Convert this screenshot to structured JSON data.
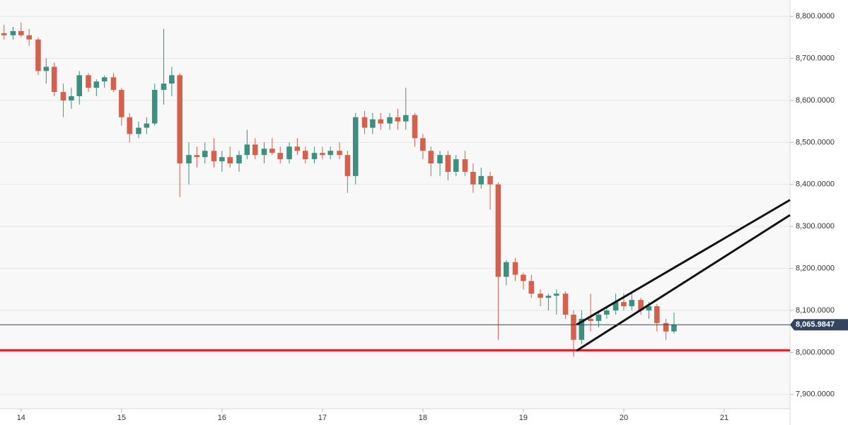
{
  "chart_data": {
    "type": "candlestick",
    "up_color": "#3d8f80",
    "down_color": "#d4604e",
    "xlim": [
      13.79,
      21.655
    ],
    "ylim": [
      7866,
      8839
    ],
    "xticks": [
      14,
      15,
      16,
      17,
      18,
      19,
      20,
      21
    ],
    "yticks": [
      {
        "value": 7900,
        "label": "7,900.0000"
      },
      {
        "value": 8000,
        "label": "8,000.0000"
      },
      {
        "value": 8100,
        "label": "8,100.0000"
      },
      {
        "value": 8200,
        "label": "8,200.0000"
      },
      {
        "value": 8300,
        "label": "8,300.0000"
      },
      {
        "value": 8400,
        "label": "8,400.0000"
      },
      {
        "value": 8500,
        "label": "8,500.0000"
      },
      {
        "value": 8600,
        "label": "8,600.0000"
      },
      {
        "value": 8700,
        "label": "8,700.0000"
      },
      {
        "value": 8800,
        "label": "8,800.0000"
      }
    ],
    "grid": true,
    "current_price": {
      "value": 8065.9847,
      "label": "8,065.9847",
      "color": "#34435f"
    },
    "lines": [
      {
        "color": "#e01b1b",
        "x": [
          13.79,
          21.655
        ],
        "y": [
          8005,
          8005
        ]
      },
      {
        "color": "#111111",
        "x": [
          19.53,
          21.655
        ],
        "y": [
          8066,
          8363
        ]
      },
      {
        "color": "#111111",
        "x": [
          19.53,
          21.655
        ],
        "y": [
          8004,
          8327
        ]
      }
    ],
    "x": [
      13.83,
      13.92,
      14.0,
      14.08,
      14.17,
      14.25,
      14.33,
      14.42,
      14.5,
      14.58,
      14.67,
      14.75,
      14.83,
      14.92,
      15.0,
      15.08,
      15.17,
      15.25,
      15.33,
      15.42,
      15.5,
      15.58,
      15.67,
      15.75,
      15.83,
      15.92,
      16.0,
      16.08,
      16.17,
      16.25,
      16.33,
      16.42,
      16.5,
      16.58,
      16.67,
      16.75,
      16.83,
      16.92,
      17.0,
      17.08,
      17.17,
      17.25,
      17.33,
      17.42,
      17.5,
      17.58,
      17.67,
      17.75,
      17.83,
      17.92,
      18.0,
      18.08,
      18.17,
      18.25,
      18.33,
      18.42,
      18.5,
      18.58,
      18.67,
      18.75,
      18.83,
      18.92,
      19.0,
      19.08,
      19.17,
      19.25,
      19.33,
      19.42,
      19.5,
      19.58,
      19.67,
      19.75,
      19.83,
      19.92,
      20.0,
      20.08,
      20.17,
      20.25,
      20.33,
      20.42,
      20.5
    ],
    "candles": [
      [
        8760,
        8780,
        8745,
        8755
      ],
      [
        8755,
        8775,
        8745,
        8765
      ],
      [
        8765,
        8785,
        8750,
        8755
      ],
      [
        8755,
        8770,
        8730,
        8745
      ],
      [
        8745,
        8750,
        8660,
        8670
      ],
      [
        8670,
        8700,
        8640,
        8680
      ],
      [
        8680,
        8690,
        8610,
        8620
      ],
      [
        8620,
        8640,
        8560,
        8600
      ],
      [
        8600,
        8630,
        8580,
        8610
      ],
      [
        8610,
        8670,
        8590,
        8660
      ],
      [
        8660,
        8665,
        8620,
        8630
      ],
      [
        8630,
        8650,
        8610,
        8645
      ],
      [
        8645,
        8660,
        8630,
        8655
      ],
      [
        8655,
        8665,
        8620,
        8625
      ],
      [
        8625,
        8630,
        8540,
        8560
      ],
      [
        8560,
        8570,
        8500,
        8520
      ],
      [
        8520,
        8550,
        8510,
        8535
      ],
      [
        8535,
        8560,
        8520,
        8545
      ],
      [
        8545,
        8640,
        8540,
        8625
      ],
      [
        8625,
        8770,
        8590,
        8640
      ],
      [
        8640,
        8680,
        8610,
        8660
      ],
      [
        8660,
        8665,
        8370,
        8450
      ],
      [
        8450,
        8500,
        8400,
        8470
      ],
      [
        8470,
        8490,
        8440,
        8465
      ],
      [
        8465,
        8500,
        8450,
        8480
      ],
      [
        8480,
        8510,
        8440,
        8455
      ],
      [
        8455,
        8480,
        8430,
        8465
      ],
      [
        8465,
        8490,
        8440,
        8450
      ],
      [
        8450,
        8480,
        8430,
        8470
      ],
      [
        8470,
        8530,
        8460,
        8495
      ],
      [
        8495,
        8510,
        8460,
        8470
      ],
      [
        8470,
        8500,
        8450,
        8485
      ],
      [
        8485,
        8510,
        8470,
        8475
      ],
      [
        8475,
        8490,
        8450,
        8460
      ],
      [
        8460,
        8500,
        8450,
        8490
      ],
      [
        8490,
        8510,
        8470,
        8480
      ],
      [
        8480,
        8490,
        8450,
        8460
      ],
      [
        8460,
        8490,
        8450,
        8475
      ],
      [
        8475,
        8490,
        8460,
        8470
      ],
      [
        8470,
        8490,
        8460,
        8480
      ],
      [
        8480,
        8500,
        8460,
        8470
      ],
      [
        8470,
        8480,
        8380,
        8420
      ],
      [
        8420,
        8570,
        8400,
        8560
      ],
      [
        8560,
        8575,
        8520,
        8535
      ],
      [
        8535,
        8570,
        8520,
        8555
      ],
      [
        8555,
        8570,
        8530,
        8545
      ],
      [
        8545,
        8570,
        8530,
        8560
      ],
      [
        8560,
        8580,
        8530,
        8550
      ],
      [
        8550,
        8630,
        8530,
        8565
      ],
      [
        8565,
        8570,
        8490,
        8510
      ],
      [
        8510,
        8520,
        8460,
        8480
      ],
      [
        8480,
        8490,
        8420,
        8450
      ],
      [
        8450,
        8480,
        8420,
        8470
      ],
      [
        8470,
        8480,
        8410,
        8430
      ],
      [
        8430,
        8470,
        8420,
        8460
      ],
      [
        8460,
        8480,
        8420,
        8430
      ],
      [
        8430,
        8450,
        8380,
        8400
      ],
      [
        8400,
        8440,
        8390,
        8420
      ],
      [
        8420,
        8430,
        8340,
        8400
      ],
      [
        8400,
        8405,
        8030,
        8180
      ],
      [
        8180,
        8220,
        8160,
        8215
      ],
      [
        8215,
        8225,
        8170,
        8185
      ],
      [
        8185,
        8190,
        8150,
        8170
      ],
      [
        8170,
        8185,
        8130,
        8140
      ],
      [
        8140,
        8150,
        8110,
        8130
      ],
      [
        8130,
        8140,
        8100,
        8135
      ],
      [
        8135,
        8150,
        8090,
        8140
      ],
      [
        8140,
        8145,
        8080,
        8090
      ],
      [
        8090,
        8100,
        7990,
        8030
      ],
      [
        8030,
        8100,
        8020,
        8080
      ],
      [
        8080,
        8140,
        8050,
        8075
      ],
      [
        8075,
        8100,
        8060,
        8090
      ],
      [
        8090,
        8110,
        8080,
        8100
      ],
      [
        8100,
        8140,
        8090,
        8120
      ],
      [
        8120,
        8140,
        8100,
        8110
      ],
      [
        8110,
        8140,
        8100,
        8125
      ],
      [
        8125,
        8130,
        8090,
        8100
      ],
      [
        8100,
        8120,
        8080,
        8110
      ],
      [
        8110,
        8115,
        8050,
        8070
      ],
      [
        8070,
        8080,
        8030,
        8050
      ],
      [
        8050,
        8095,
        8045,
        8066
      ]
    ]
  }
}
